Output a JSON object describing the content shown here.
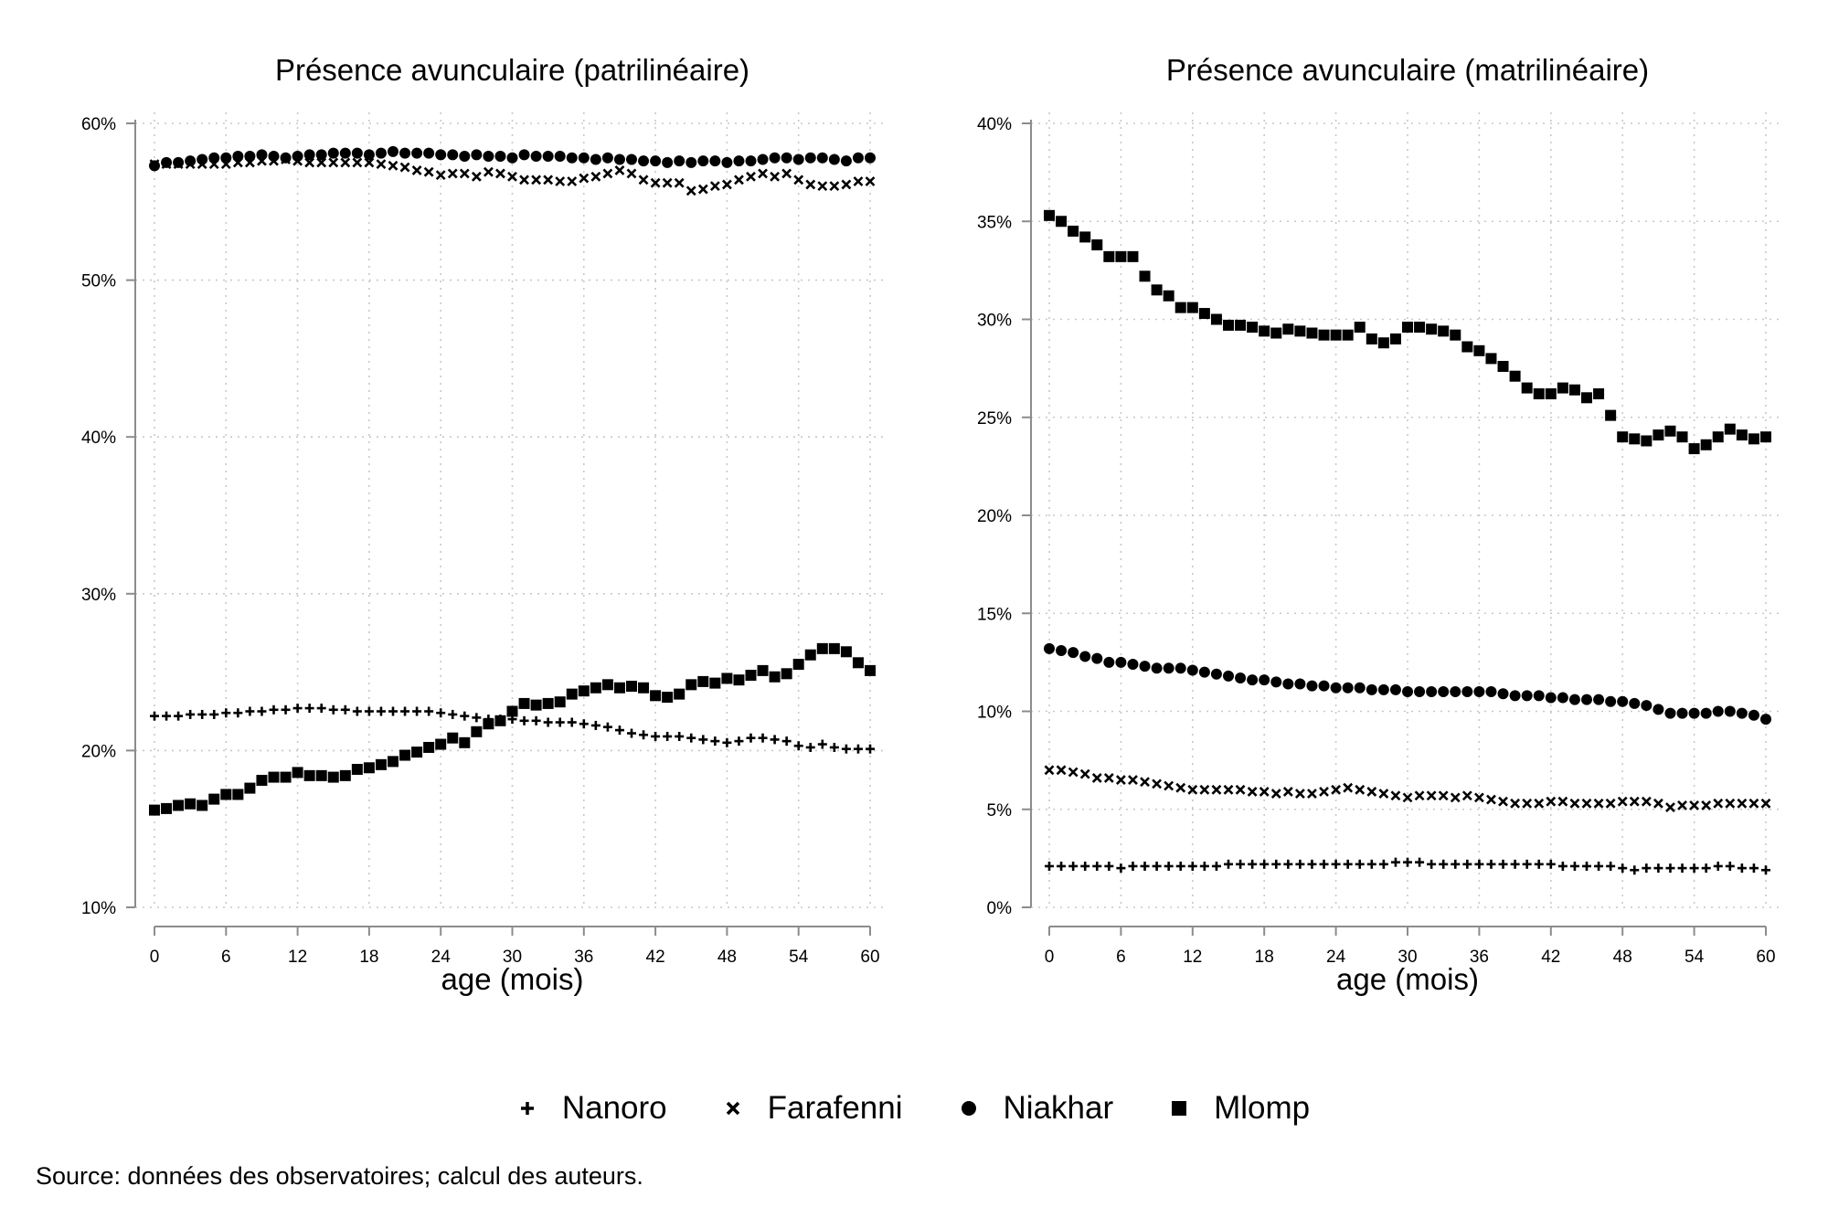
{
  "chart_data": [
    {
      "type": "scatter",
      "title": "Présence avunculaire (patrilinéaire)",
      "xlabel": "age (mois)",
      "ylabel": "",
      "xlim": [
        0,
        60
      ],
      "ylim": [
        10,
        60
      ],
      "xticks": [
        0,
        6,
        12,
        18,
        24,
        30,
        36,
        42,
        48,
        54,
        60
      ],
      "xtick_labels": [
        "0",
        "6",
        "12",
        "18",
        "24",
        "30",
        "36",
        "42",
        "48",
        "54",
        "60"
      ],
      "yticks": [
        10,
        20,
        30,
        40,
        50,
        60
      ],
      "ytick_labels": [
        "10%",
        "20%",
        "30%",
        "40%",
        "50%",
        "60%"
      ],
      "grid": true,
      "series": [
        {
          "name": "Nanoro",
          "marker": "plus",
          "values": [
            22.2,
            22.2,
            22.2,
            22.3,
            22.3,
            22.3,
            22.4,
            22.4,
            22.5,
            22.5,
            22.6,
            22.6,
            22.7,
            22.7,
            22.7,
            22.6,
            22.6,
            22.5,
            22.5,
            22.5,
            22.5,
            22.5,
            22.5,
            22.5,
            22.4,
            22.3,
            22.2,
            22.1,
            22.0,
            22.0,
            22.0,
            21.9,
            21.9,
            21.8,
            21.8,
            21.8,
            21.7,
            21.6,
            21.5,
            21.3,
            21.1,
            21.0,
            20.9,
            20.9,
            20.9,
            20.8,
            20.7,
            20.6,
            20.5,
            20.6,
            20.8,
            20.8,
            20.7,
            20.6,
            20.3,
            20.2,
            20.4,
            20.2,
            20.1,
            20.1,
            20.1
          ]
        },
        {
          "name": "Farafenni",
          "marker": "x",
          "values": [
            57.4,
            57.4,
            57.4,
            57.4,
            57.4,
            57.4,
            57.4,
            57.5,
            57.5,
            57.6,
            57.6,
            57.7,
            57.6,
            57.5,
            57.5,
            57.5,
            57.5,
            57.5,
            57.5,
            57.4,
            57.3,
            57.2,
            57.0,
            56.9,
            56.7,
            56.8,
            56.8,
            56.6,
            56.9,
            56.8,
            56.6,
            56.4,
            56.4,
            56.4,
            56.3,
            56.3,
            56.5,
            56.6,
            56.8,
            57.0,
            56.8,
            56.4,
            56.2,
            56.2,
            56.2,
            55.7,
            55.8,
            56.0,
            56.1,
            56.4,
            56.6,
            56.8,
            56.6,
            56.8,
            56.4,
            56.1,
            56.0,
            56.0,
            56.1,
            56.3,
            56.3
          ]
        },
        {
          "name": "Niakhar",
          "marker": "circle",
          "values": [
            57.3,
            57.5,
            57.5,
            57.6,
            57.7,
            57.8,
            57.8,
            57.9,
            57.9,
            58.0,
            57.9,
            57.8,
            57.9,
            58.0,
            58.0,
            58.1,
            58.1,
            58.1,
            58.0,
            58.1,
            58.2,
            58.1,
            58.1,
            58.1,
            58.0,
            58.0,
            57.9,
            58.0,
            57.9,
            57.9,
            57.8,
            58.0,
            57.9,
            57.9,
            57.9,
            57.8,
            57.8,
            57.7,
            57.8,
            57.7,
            57.7,
            57.6,
            57.6,
            57.5,
            57.6,
            57.5,
            57.6,
            57.6,
            57.5,
            57.6,
            57.6,
            57.7,
            57.8,
            57.8,
            57.7,
            57.8,
            57.8,
            57.7,
            57.6,
            57.8,
            57.8
          ]
        },
        {
          "name": "Mlomp",
          "marker": "square",
          "values": [
            16.2,
            16.3,
            16.5,
            16.6,
            16.5,
            16.9,
            17.2,
            17.2,
            17.6,
            18.1,
            18.3,
            18.3,
            18.6,
            18.4,
            18.4,
            18.3,
            18.4,
            18.8,
            18.9,
            19.1,
            19.3,
            19.7,
            19.9,
            20.2,
            20.4,
            20.8,
            20.5,
            21.2,
            21.7,
            21.9,
            22.5,
            23.0,
            22.9,
            23.0,
            23.1,
            23.6,
            23.8,
            24.0,
            24.2,
            24.0,
            24.1,
            24.0,
            23.5,
            23.4,
            23.6,
            24.2,
            24.4,
            24.3,
            24.6,
            24.5,
            24.8,
            25.1,
            24.7,
            24.9,
            25.5,
            26.1,
            26.5,
            26.5,
            26.3,
            25.6,
            25.1
          ]
        }
      ]
    },
    {
      "type": "scatter",
      "title": "Présence avunculaire (matrilinéaire)",
      "xlabel": "age (mois)",
      "ylabel": "",
      "xlim": [
        0,
        60
      ],
      "ylim": [
        0,
        40
      ],
      "xticks": [
        0,
        6,
        12,
        18,
        24,
        30,
        36,
        42,
        48,
        54,
        60
      ],
      "xtick_labels": [
        "0",
        "6",
        "12",
        "18",
        "24",
        "30",
        "36",
        "42",
        "48",
        "54",
        "60"
      ],
      "yticks": [
        0,
        5,
        10,
        15,
        20,
        25,
        30,
        35,
        40
      ],
      "ytick_labels": [
        "0%",
        "5%",
        "10%",
        "15%",
        "20%",
        "25%",
        "30%",
        "35%",
        "40%"
      ],
      "grid": true,
      "series": [
        {
          "name": "Nanoro",
          "marker": "plus",
          "values": [
            2.1,
            2.1,
            2.1,
            2.1,
            2.1,
            2.1,
            2.0,
            2.1,
            2.1,
            2.1,
            2.1,
            2.1,
            2.1,
            2.1,
            2.1,
            2.2,
            2.2,
            2.2,
            2.2,
            2.2,
            2.2,
            2.2,
            2.2,
            2.2,
            2.2,
            2.2,
            2.2,
            2.2,
            2.2,
            2.3,
            2.3,
            2.3,
            2.2,
            2.2,
            2.2,
            2.2,
            2.2,
            2.2,
            2.2,
            2.2,
            2.2,
            2.2,
            2.2,
            2.1,
            2.1,
            2.1,
            2.1,
            2.1,
            2.0,
            1.9,
            2.0,
            2.0,
            2.0,
            2.0,
            2.0,
            2.0,
            2.1,
            2.1,
            2.0,
            2.0,
            1.9
          ]
        },
        {
          "name": "Farafenni",
          "marker": "x",
          "values": [
            7.0,
            7.0,
            6.9,
            6.8,
            6.6,
            6.6,
            6.5,
            6.5,
            6.4,
            6.3,
            6.2,
            6.1,
            6.0,
            6.0,
            6.0,
            6.0,
            6.0,
            5.9,
            5.9,
            5.8,
            5.9,
            5.8,
            5.8,
            5.9,
            6.0,
            6.1,
            6.0,
            5.9,
            5.8,
            5.7,
            5.6,
            5.7,
            5.7,
            5.7,
            5.6,
            5.7,
            5.6,
            5.5,
            5.4,
            5.3,
            5.3,
            5.3,
            5.4,
            5.4,
            5.3,
            5.3,
            5.3,
            5.3,
            5.4,
            5.4,
            5.4,
            5.3,
            5.1,
            5.2,
            5.2,
            5.2,
            5.3,
            5.3,
            5.3,
            5.3,
            5.3
          ]
        },
        {
          "name": "Niakhar",
          "marker": "circle",
          "values": [
            13.2,
            13.1,
            13.0,
            12.8,
            12.7,
            12.5,
            12.5,
            12.4,
            12.3,
            12.2,
            12.2,
            12.2,
            12.1,
            12.0,
            11.9,
            11.8,
            11.7,
            11.6,
            11.6,
            11.5,
            11.4,
            11.4,
            11.3,
            11.3,
            11.2,
            11.2,
            11.2,
            11.1,
            11.1,
            11.1,
            11.0,
            11.0,
            11.0,
            11.0,
            11.0,
            11.0,
            11.0,
            11.0,
            10.9,
            10.8,
            10.8,
            10.8,
            10.7,
            10.7,
            10.6,
            10.6,
            10.6,
            10.5,
            10.5,
            10.4,
            10.3,
            10.1,
            9.9,
            9.9,
            9.9,
            9.9,
            10.0,
            10.0,
            9.9,
            9.8,
            9.6
          ]
        },
        {
          "name": "Mlomp",
          "marker": "square",
          "values": [
            35.3,
            35.0,
            34.5,
            34.2,
            33.8,
            33.2,
            33.2,
            33.2,
            32.2,
            31.5,
            31.2,
            30.6,
            30.6,
            30.3,
            30.0,
            29.7,
            29.7,
            29.6,
            29.4,
            29.3,
            29.5,
            29.4,
            29.3,
            29.2,
            29.2,
            29.2,
            29.6,
            29.0,
            28.8,
            29.0,
            29.6,
            29.6,
            29.5,
            29.4,
            29.2,
            28.6,
            28.4,
            28.0,
            27.6,
            27.1,
            26.5,
            26.2,
            26.2,
            26.5,
            26.4,
            26.0,
            26.2,
            25.1,
            24.0,
            23.9,
            23.8,
            24.1,
            24.3,
            24.0,
            23.4,
            23.6,
            24.0,
            24.4,
            24.1,
            23.9,
            24.0
          ]
        }
      ]
    }
  ],
  "legend": {
    "placement": "bottom",
    "items": [
      {
        "name": "Nanoro",
        "icon": "plus-icon"
      },
      {
        "name": "Farafenni",
        "icon": "cross-icon"
      },
      {
        "name": "Niakhar",
        "icon": "circle-icon"
      },
      {
        "name": "Mlomp",
        "icon": "square-icon"
      }
    ]
  },
  "source": "Source: données des observatoires; calcul des auteurs.",
  "colors": {
    "marker": "#000000",
    "axis": "#8c8c8c",
    "grid": "#c8c8c8",
    "background": "#ffffff"
  }
}
